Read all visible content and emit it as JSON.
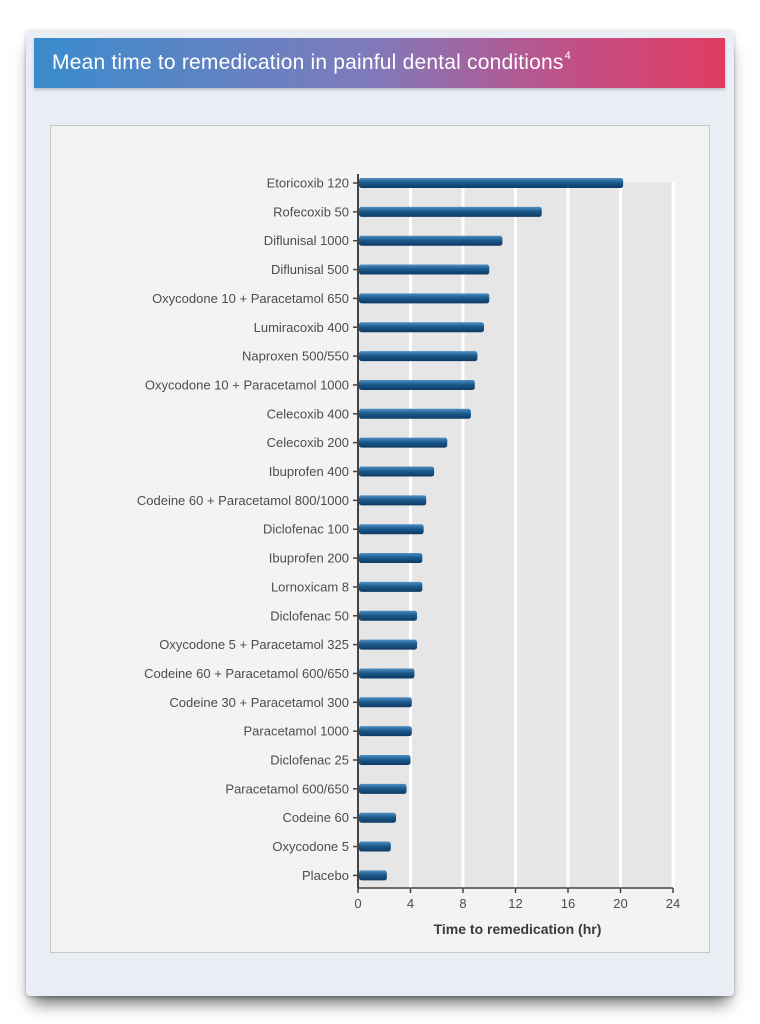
{
  "title": {
    "text": "Mean time to remedication in painful dental conditions",
    "sup": "4"
  },
  "chart_data": {
    "type": "bar",
    "orientation": "horizontal",
    "title": "Mean time to remedication in painful dental conditions",
    "xlabel": "Time to remedication (hr)",
    "ylabel": "",
    "xlim": [
      0,
      24
    ],
    "xticks": [
      0,
      4,
      8,
      12,
      16,
      20,
      24
    ],
    "grid": true,
    "categories": [
      "Etoricoxib 120",
      "Rofecoxib 50",
      "Diflunisal 1000",
      "Diflunisal 500",
      "Oxycodone 10 + Paracetamol 650",
      "Lumiracoxib 400",
      "Naproxen 500/550",
      "Oxycodone 10 + Paracetamol 1000",
      "Celecoxib 400",
      "Celecoxib 200",
      "Ibuprofen 400",
      "Codeine 60 + Paracetamol 800/1000",
      "Diclofenac 100",
      "Ibuprofen 200",
      "Lornoxicam 8",
      "Diclofenac 50",
      "Oxycodone 5 + Paracetamol 325",
      "Codeine 60 + Paracetamol 600/650",
      "Codeine 30 + Paracetamol 300",
      "Paracetamol 1000",
      "Diclofenac 25",
      "Paracetamol 600/650",
      "Codeine 60",
      "Oxycodone 5",
      "Placebo"
    ],
    "values": [
      20.2,
      14.0,
      11.0,
      10.0,
      10.0,
      9.6,
      9.1,
      8.9,
      8.6,
      6.8,
      5.8,
      5.2,
      5.0,
      4.9,
      4.9,
      4.5,
      4.5,
      4.3,
      4.1,
      4.1,
      4.0,
      3.7,
      2.9,
      2.5,
      2.2
    ],
    "bar_color": "#1b5a8c"
  }
}
